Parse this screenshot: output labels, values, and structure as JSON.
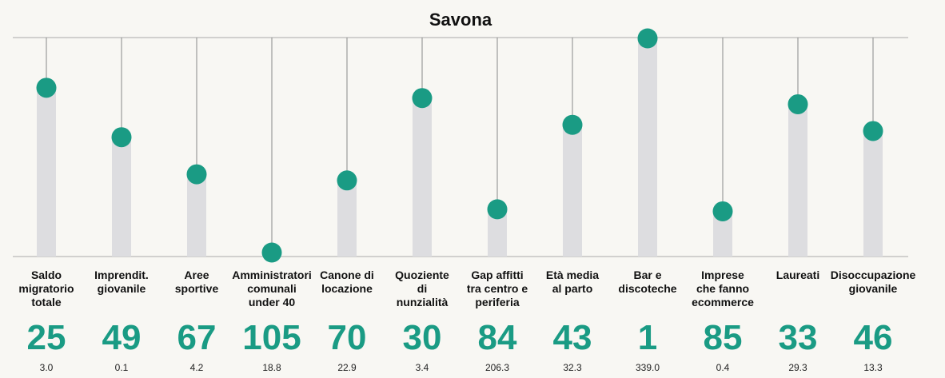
{
  "chart_data": {
    "type": "scatter",
    "title": "Savona",
    "categories": [
      "Saldo\nmigratorio\ntotale",
      "Imprendit.\ngiovanile",
      "Aree\nsportive",
      "Amministratori\ncomunali\nunder 40",
      "Canone di\nlocazione",
      "Quoziente\ndi\nnunzialità",
      "Gap affitti\ntra centro e\nperiferia",
      "Età media\nal parto",
      "Bar e\ndiscoteche",
      "Imprese\nche fanno\necommerce",
      "Laureati",
      "Disoccupazione\ngiovanile"
    ],
    "ranks": [
      25,
      49,
      67,
      105,
      70,
      30,
      84,
      43,
      1,
      85,
      33,
      46
    ],
    "values": [
      "3.0",
      "0.1",
      "4.2",
      "18.8",
      "22.9",
      "3.4",
      "206.3",
      "32.3",
      "339.0",
      "0.4",
      "29.3",
      "13.3"
    ],
    "rank_range": [
      1,
      105
    ],
    "colors": {
      "dot": "#1a9b84",
      "bar": "#dddde0",
      "line": "#888888"
    }
  }
}
